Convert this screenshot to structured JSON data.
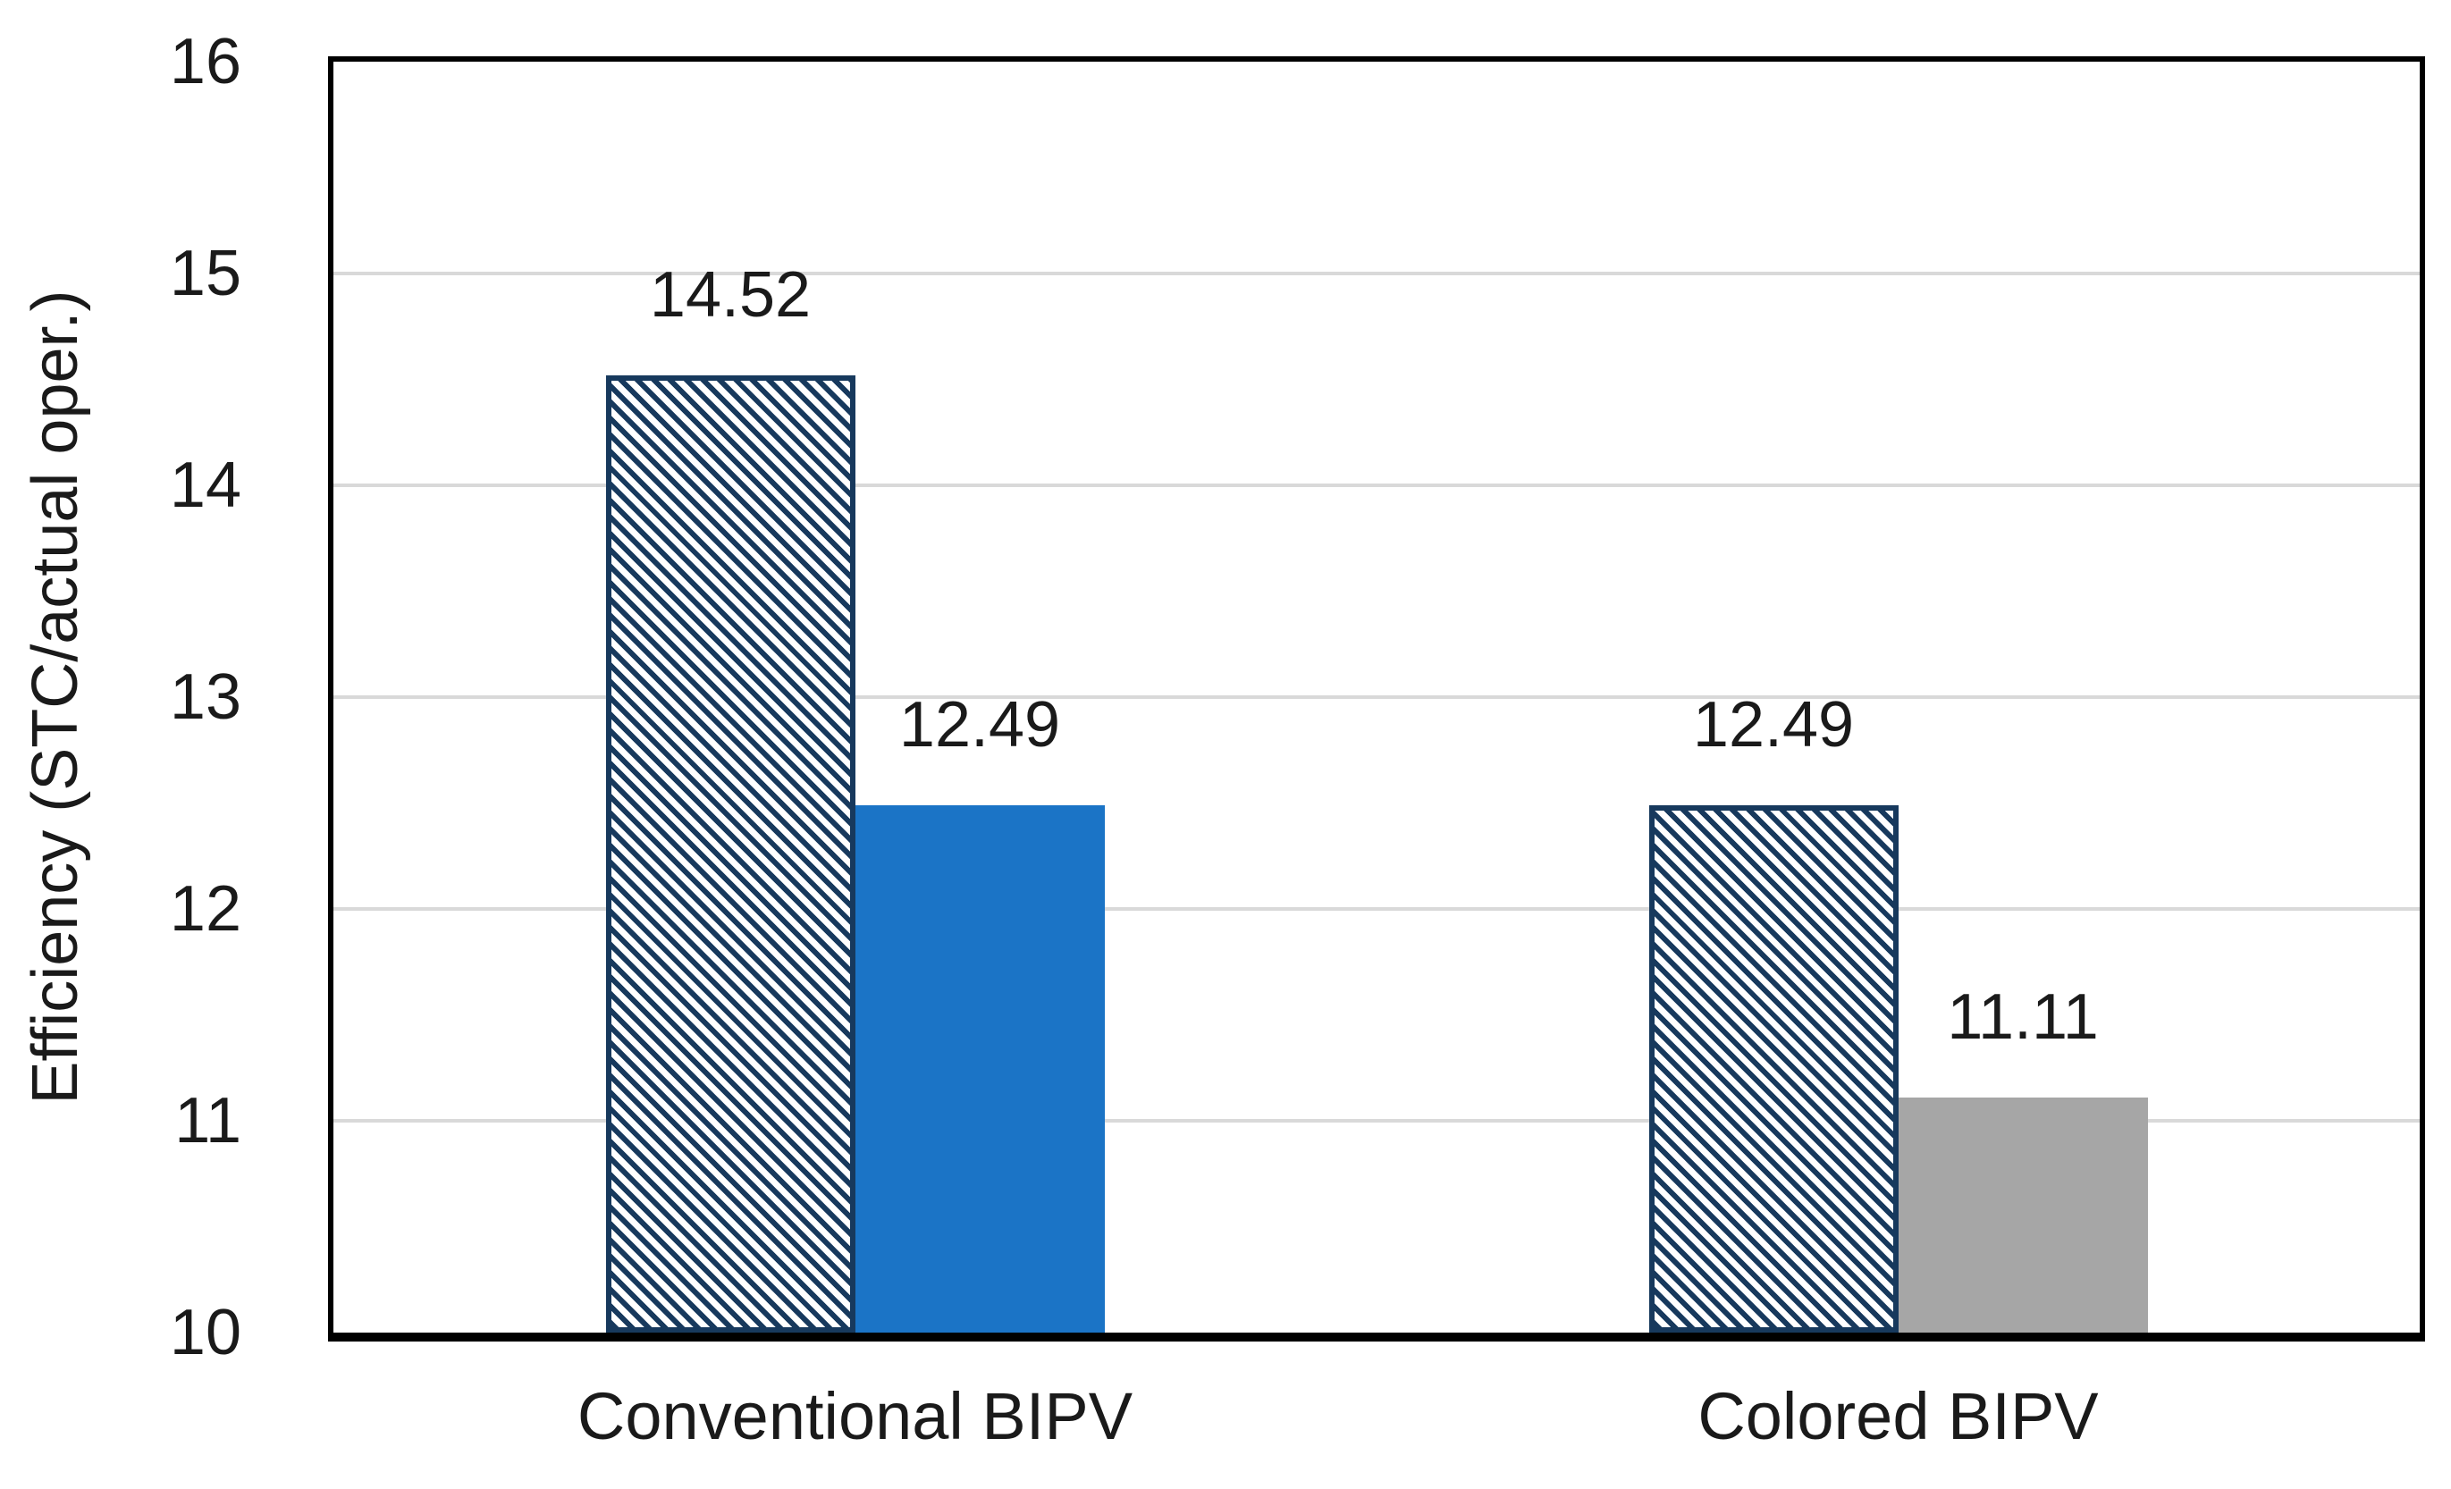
{
  "chart_data": {
    "type": "bar",
    "title": "",
    "ylabel": "Efficiency (STC/actual oper.)",
    "xlabel": "",
    "ylim": [
      10,
      16
    ],
    "yticks": [
      16,
      15,
      14,
      13,
      12,
      11,
      10
    ],
    "grid": true,
    "legend_position": "none",
    "categories": [
      "Conventional BIPV",
      "Colored BIPV"
    ],
    "series": [
      {
        "style": "hatched-diagonal",
        "values": [
          14.52,
          12.49
        ],
        "labels": [
          "14.52",
          "12.49"
        ]
      },
      {
        "style": "solid",
        "values": [
          12.49,
          11.11
        ],
        "labels": [
          "12.49",
          "11.11"
        ],
        "fill_colors": [
          "#1B74C6",
          "#A6A6A6"
        ]
      }
    ]
  },
  "colors": {
    "hatch_stripe": "#17395D",
    "hatch_border": "#17395D",
    "solid_blue": "#1B74C6",
    "solid_gray": "#A6A6A6",
    "gridline": "#D9D9D9",
    "axis": "#000000",
    "text": "#1A1A1A",
    "background": "#FFFFFF"
  }
}
